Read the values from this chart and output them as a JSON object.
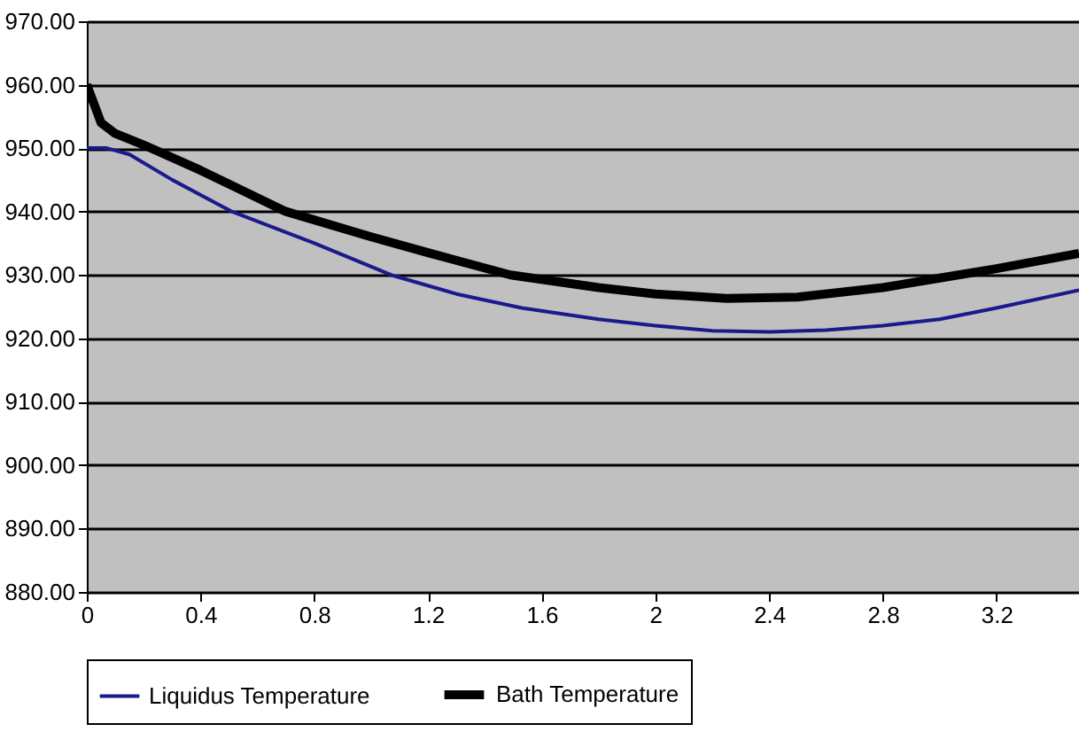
{
  "chart_data": {
    "type": "line",
    "xlim": [
      0,
      3.49
    ],
    "xticks": [
      0,
      0.4,
      0.8,
      1.2,
      1.6,
      2,
      2.4,
      2.8,
      3.2
    ],
    "ylim": [
      880,
      970
    ],
    "yticks": [
      {
        "value": 880,
        "label": "880.00"
      },
      {
        "value": 890,
        "label": "890.00"
      },
      {
        "value": 900,
        "label": "900.00"
      },
      {
        "value": 910,
        "label": "910.00"
      },
      {
        "value": 920,
        "label": "920.00"
      },
      {
        "value": 930,
        "label": "930.00"
      },
      {
        "value": 940,
        "label": "940.00"
      },
      {
        "value": 950,
        "label": "950.00"
      },
      {
        "value": 960,
        "label": "960.00"
      },
      {
        "value": 970,
        "label": "970.00"
      }
    ],
    "grid": "y",
    "legend": "bottom",
    "marker": "none",
    "line_style": "solid",
    "series": [
      {
        "name": "Liquidus Temperature",
        "color": "#1a1a8c",
        "x": [
          0,
          0.07,
          0.15,
          0.3,
          0.51,
          0.8,
          1.07,
          1.3,
          1.53,
          1.8,
          2.0,
          2.2,
          2.4,
          2.6,
          2.8,
          3.0,
          3.2,
          3.49
        ],
        "values": [
          950,
          950,
          949,
          945,
          940,
          935,
          930,
          927,
          924.8,
          923,
          922,
          921.2,
          921,
          921.3,
          922,
          923,
          924.8,
          927.6
        ]
      },
      {
        "name": "Bath Temperature",
        "color": "#000000",
        "x": [
          0,
          0.05,
          0.1,
          0.2,
          0.4,
          0.7,
          1.0,
          1.2,
          1.49,
          1.8,
          2.0,
          2.25,
          2.5,
          2.8,
          3.0,
          3.2,
          3.49
        ],
        "values": [
          960,
          954,
          952.3,
          950.5,
          946.5,
          940,
          936,
          933.5,
          930,
          928,
          927,
          926.3,
          926.5,
          928,
          929.5,
          931,
          933.4
        ]
      }
    ]
  }
}
